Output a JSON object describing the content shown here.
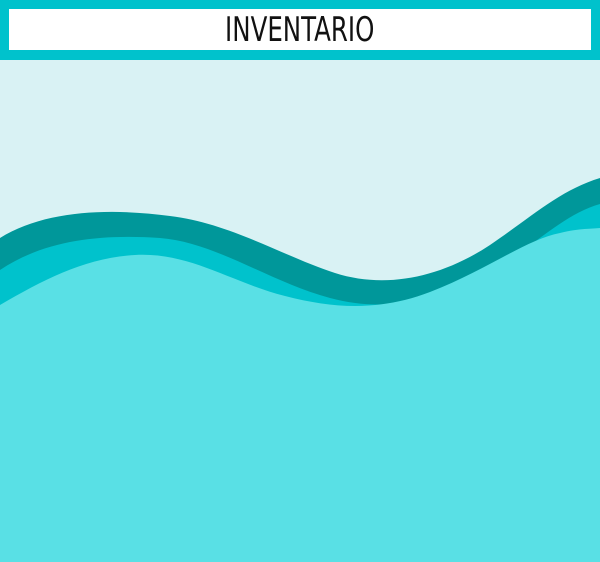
{
  "header": {
    "title": "INVENTARIO"
  },
  "colors": {
    "header_border": "#00C2CC",
    "title_background": "#FFFFFF",
    "title_text": "#111111",
    "sky": "#D9F2F4",
    "wave_dark": "#00979A",
    "wave_mid": "#00C2CC",
    "wave_light": "#59E0E5"
  }
}
